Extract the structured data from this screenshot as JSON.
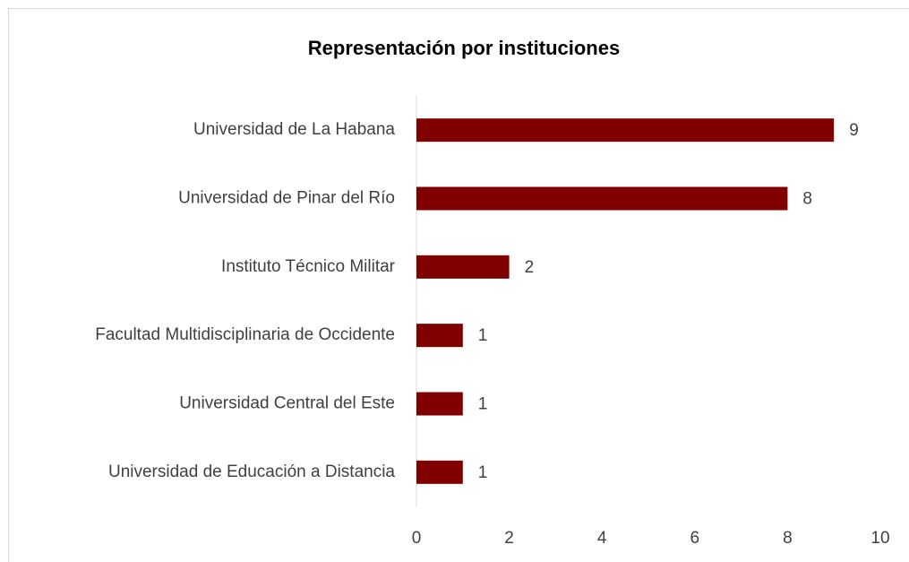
{
  "chart_data": {
    "type": "bar",
    "orientation": "horizontal",
    "title": "Representación por instituciones",
    "categories": [
      "Universidad de La Habana",
      "Universidad de Pinar del Río",
      "Instituto Técnico Militar",
      "Facultad Multidisciplinaria de Occidente",
      "Universidad Central del Este",
      "Universidad de Educación a Distancia"
    ],
    "values": [
      9,
      8,
      2,
      1,
      1,
      1
    ],
    "color": "#800000",
    "data_labels": true,
    "xlim": [
      0,
      10
    ],
    "xticks": [
      0,
      2,
      4,
      6,
      8,
      10
    ],
    "grid": false
  }
}
